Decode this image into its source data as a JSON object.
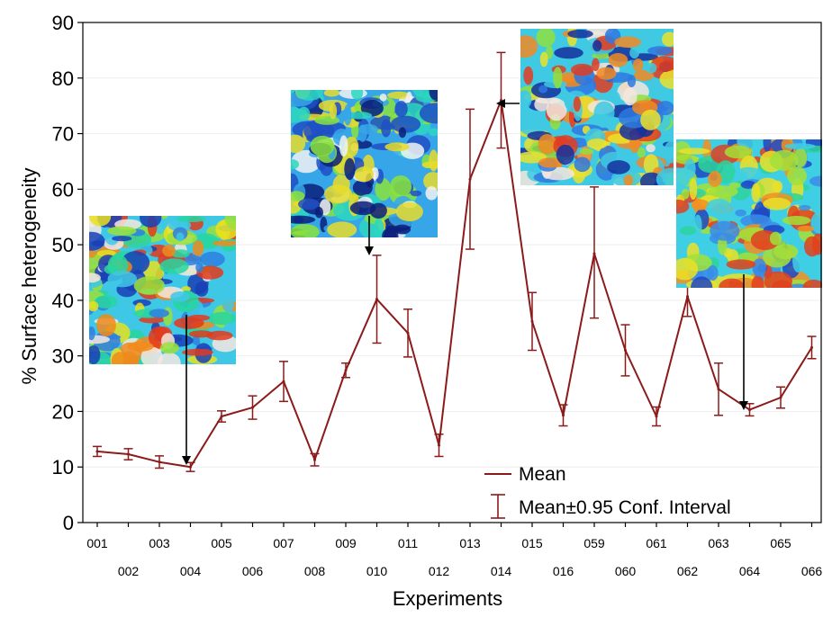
{
  "chart_data": {
    "type": "line",
    "xlabel": "Experiments",
    "ylabel": "% Surface heterogeneity",
    "ylim": [
      0,
      90
    ],
    "yticks": [
      0,
      10,
      20,
      30,
      40,
      50,
      60,
      70,
      80,
      90
    ],
    "grid": true,
    "legend_position": "bottom-right",
    "categories": [
      "001",
      "002",
      "003",
      "004",
      "005",
      "006",
      "007",
      "008",
      "009",
      "010",
      "011",
      "012",
      "013",
      "014",
      "015",
      "016",
      "059",
      "060",
      "061",
      "062",
      "063",
      "064",
      "065",
      "066"
    ],
    "series": [
      {
        "name": "Mean",
        "color": "#8b1a1a",
        "values": [
          12.8,
          12.3,
          10.9,
          10.0,
          19.1,
          20.7,
          25.4,
          11.3,
          27.4,
          40.2,
          34.1,
          13.9,
          61.8,
          76.0,
          36.2,
          19.3,
          48.4,
          31.0,
          19.1,
          40.7,
          24.0,
          20.3,
          22.5,
          31.5
        ],
        "ci_low": [
          11.9,
          11.3,
          9.8,
          9.2,
          18.1,
          18.6,
          21.8,
          10.2,
          26.1,
          32.3,
          29.8,
          11.9,
          49.2,
          67.4,
          31.0,
          17.4,
          36.8,
          26.4,
          17.4,
          37.1,
          19.3,
          19.2,
          20.6,
          29.5
        ],
        "ci_high": [
          13.7,
          13.3,
          12.0,
          10.8,
          20.1,
          22.8,
          29.0,
          12.4,
          28.7,
          48.1,
          38.4,
          15.9,
          74.4,
          84.6,
          41.4,
          21.2,
          60.4,
          35.6,
          20.8,
          44.3,
          28.7,
          21.4,
          24.4,
          33.5
        ]
      }
    ],
    "legend": {
      "mean_label": "Mean",
      "ci_label": "Mean±0.95 Conf. Interval"
    },
    "inset_images": [
      {
        "id": "inset-004",
        "target_category": "004",
        "target_value": 10.0,
        "palette": [
          "#1a3fb5",
          "#2f7fe0",
          "#3fc7e6",
          "#27d6a0",
          "#9be03a",
          "#e8e020",
          "#f08a1c",
          "#e23a1c",
          "#f6e8e0"
        ]
      },
      {
        "id": "inset-010",
        "target_category": "010",
        "target_value": 40.2,
        "palette": [
          "#0c1f7a",
          "#1f4fc4",
          "#36a6e8",
          "#2cd6c0",
          "#8ae23c",
          "#e8dc2a",
          "#f2f2f2"
        ]
      },
      {
        "id": "inset-014",
        "target_category": "014",
        "target_value": 76.0,
        "palette": [
          "#14309e",
          "#2f78e0",
          "#3fc9e3",
          "#8fe040",
          "#ece22c",
          "#f28a22",
          "#e23c20",
          "#f4e6dc"
        ]
      },
      {
        "id": "inset-064",
        "target_category": "064",
        "target_value": 20.3,
        "palette": [
          "#1e46c4",
          "#3a8ce6",
          "#3fcfe4",
          "#2ed49c",
          "#a2e03a",
          "#ebe028",
          "#f3901e",
          "#e04020"
        ]
      }
    ]
  }
}
